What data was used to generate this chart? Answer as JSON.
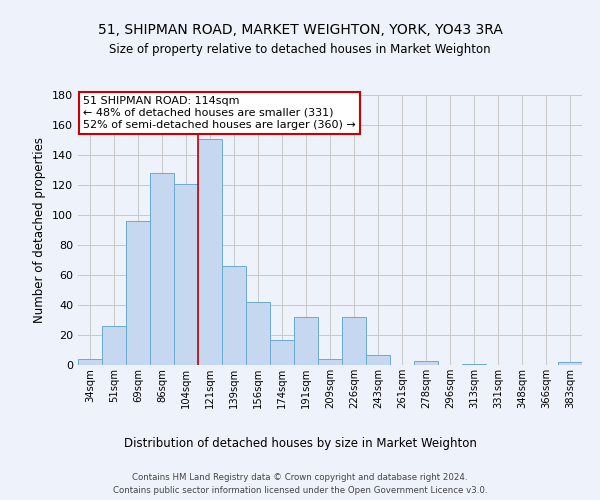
{
  "title1": "51, SHIPMAN ROAD, MARKET WEIGHTON, YORK, YO43 3RA",
  "title2": "Size of property relative to detached houses in Market Weighton",
  "xlabel": "Distribution of detached houses by size in Market Weighton",
  "ylabel": "Number of detached properties",
  "categories": [
    "34sqm",
    "51sqm",
    "69sqm",
    "86sqm",
    "104sqm",
    "121sqm",
    "139sqm",
    "156sqm",
    "174sqm",
    "191sqm",
    "209sqm",
    "226sqm",
    "243sqm",
    "261sqm",
    "278sqm",
    "296sqm",
    "313sqm",
    "331sqm",
    "348sqm",
    "366sqm",
    "383sqm"
  ],
  "values": [
    4,
    26,
    96,
    128,
    121,
    151,
    66,
    42,
    17,
    32,
    4,
    32,
    7,
    0,
    3,
    0,
    1,
    0,
    0,
    0,
    2
  ],
  "bar_color": "#c5d8ef",
  "bar_edge_color": "#6aaad4",
  "grid_color": "#c8c8c8",
  "vline_color": "#cc0000",
  "annotation_text": "51 SHIPMAN ROAD: 114sqm\n← 48% of detached houses are smaller (331)\n52% of semi-detached houses are larger (360) →",
  "annotation_box_color": "white",
  "annotation_box_edge": "#cc0000",
  "ylim": [
    0,
    180
  ],
  "yticks": [
    0,
    20,
    40,
    60,
    80,
    100,
    120,
    140,
    160,
    180
  ],
  "footer1": "Contains HM Land Registry data © Crown copyright and database right 2024.",
  "footer2": "Contains public sector information licensed under the Open Government Licence v3.0.",
  "bg_color": "#eef2fb"
}
